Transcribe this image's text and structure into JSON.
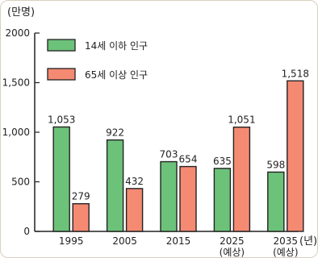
{
  "chart_data": {
    "type": "bar",
    "ylabel": "(만명)",
    "xlabel": "(년)",
    "categories": [
      "1995",
      "2005",
      "2015",
      "2025",
      "2035"
    ],
    "category_notes": [
      "",
      "",
      "",
      "(예상)",
      "(예상)"
    ],
    "series": [
      {
        "name": "14세 이하 인구",
        "color": "#6dc27a",
        "values": [
          1053,
          922,
          703,
          635,
          598
        ],
        "labels": [
          "1,053",
          "922",
          "703",
          "635",
          "598"
        ]
      },
      {
        "name": "65세 이상 인구",
        "color": "#f58a73",
        "values": [
          279,
          432,
          654,
          1051,
          1518
        ],
        "labels": [
          "279",
          "432",
          "654",
          "1,051",
          "1,518"
        ]
      }
    ],
    "ylim": [
      0,
      2000
    ],
    "yticks": [
      0,
      500,
      1000,
      1500,
      2000
    ],
    "ytick_labels": [
      "0",
      "500",
      "1,000",
      "1,500",
      "2000"
    ],
    "legend_position": "top-left",
    "grid": false
  }
}
